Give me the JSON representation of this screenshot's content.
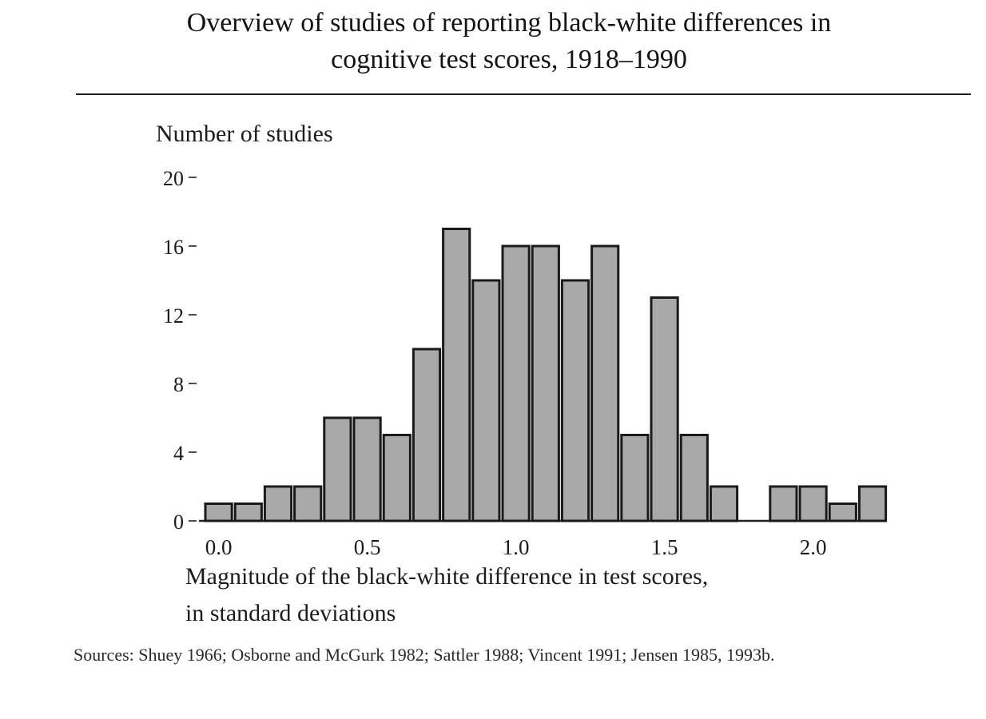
{
  "figure": {
    "title_line1": "Overview of studies of reporting black-white differences in",
    "title_line2": "cognitive test scores, 1918–1990",
    "sources": "Sources: Shuey 1966; Osborne and McGurk 1982; Sattler 1988; Vincent 1991; Jensen 1985, 1993b."
  },
  "chart_data": {
    "type": "bar",
    "ylabel": "Number of studies",
    "xlabel_line1": "Magnitude of the black-white difference in test scores,",
    "xlabel_line2": "in standard deviations",
    "ylim": [
      0,
      20
    ],
    "yticks": [
      0,
      4,
      8,
      12,
      16,
      20
    ],
    "xticks": [
      0.0,
      0.5,
      1.0,
      1.5,
      2.0
    ],
    "xtick_labels": [
      "0.0",
      "0.5",
      "1.0",
      "1.5",
      "2.0"
    ],
    "ytick_labels": [
      "0",
      "4",
      "8",
      "12",
      "16",
      "20"
    ],
    "bin_width": 0.1,
    "x": [
      0.0,
      0.1,
      0.2,
      0.3,
      0.4,
      0.5,
      0.6,
      0.7,
      0.8,
      0.9,
      1.0,
      1.1,
      1.2,
      1.3,
      1.4,
      1.5,
      1.6,
      1.7,
      1.8,
      1.9,
      2.0,
      2.1,
      2.2
    ],
    "values": [
      1,
      1,
      2,
      2,
      6,
      6,
      5,
      10,
      17,
      14,
      16,
      16,
      14,
      16,
      5,
      13,
      5,
      2,
      0,
      2,
      2,
      1,
      2
    ],
    "bar_color": "#a9a9a9",
    "edge_color": "#1a1a1a",
    "grid": false,
    "legend": "none"
  }
}
